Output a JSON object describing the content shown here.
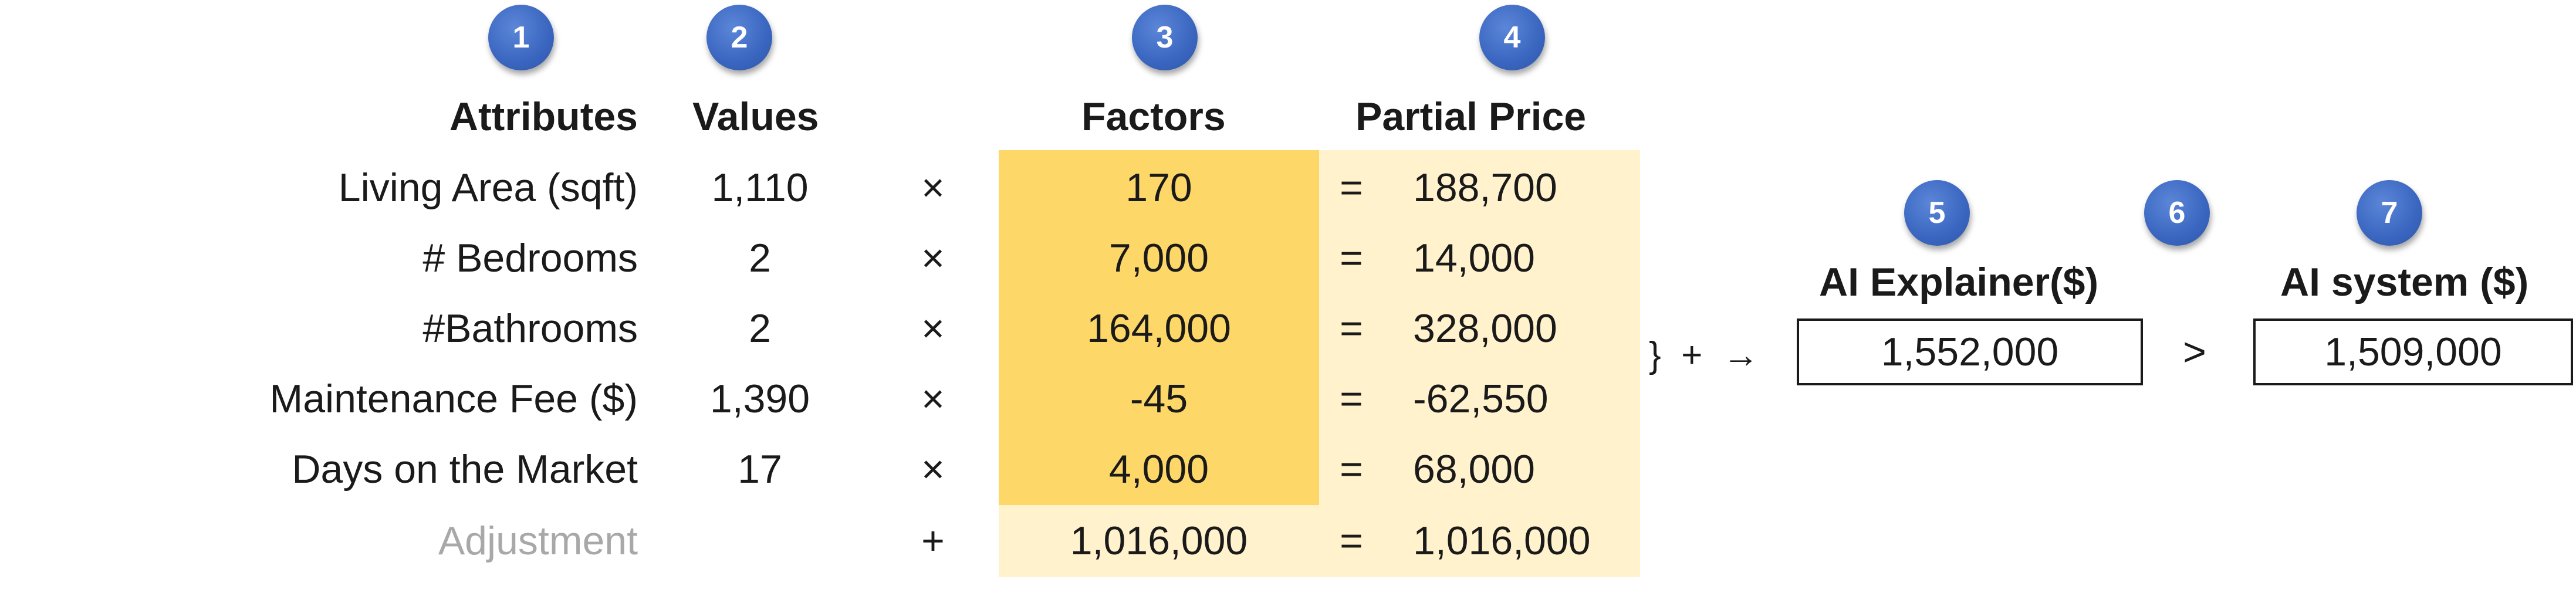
{
  "badges": [
    "1",
    "2",
    "3",
    "4",
    "5",
    "6",
    "7"
  ],
  "headers": {
    "attributes": "Attributes",
    "values": "Values",
    "factors": "Factors",
    "partial_price": "Partial Price",
    "ai_explainer": "AI Explainer($)",
    "ai_system": "AI system ($)"
  },
  "rows": [
    {
      "attribute": "Living Area (sqft)",
      "value": "1,110",
      "op": "×",
      "factor": "170",
      "eq": "=",
      "partial": "188,700"
    },
    {
      "attribute": "# Bedrooms",
      "value": "2",
      "op": "×",
      "factor": "7,000",
      "eq": "=",
      "partial": "14,000"
    },
    {
      "attribute": "#Bathrooms",
      "value": "2",
      "op": "×",
      "factor": "164,000",
      "eq": "=",
      "partial": "328,000"
    },
    {
      "attribute": "Maintenance Fee ($)",
      "value": "1,390",
      "op": "×",
      "factor": "-45",
      "eq": "=",
      "partial": "-62,550"
    },
    {
      "attribute": "Days on the Market",
      "value": "17",
      "op": "×",
      "factor": "4,000",
      "eq": "=",
      "partial": "68,000"
    },
    {
      "attribute": "Adjustment",
      "value": "",
      "op": "+",
      "factor": "1,016,000",
      "eq": "=",
      "partial": "1,016,000"
    }
  ],
  "sum_symbols": "}  +  →",
  "ai_explainer_value": "1,552,000",
  "comparison": ">",
  "ai_system_value": "1,509,000",
  "colors": {
    "factor_fill": "#fdd768",
    "partial_fill": "#fff2cc",
    "badge_fill": "#3a66c0",
    "adjustment_text": "#a8a8a8"
  }
}
